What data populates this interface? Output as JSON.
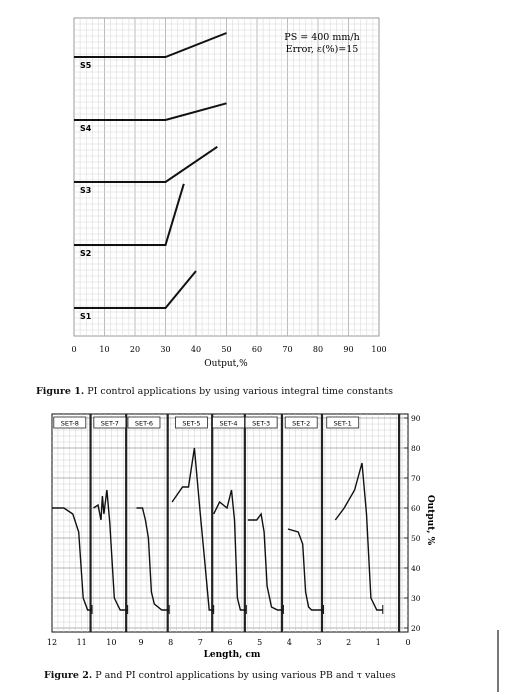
{
  "figure1": {
    "caption_label": "Figure 1.",
    "caption_text": " PI control applications by using various integral time constants",
    "annotation_line1": "PS = 400 mm/h",
    "annotation_line2": "Error, ε(%)=15",
    "xlabel": "Output,%",
    "xticks": [
      "0",
      "10",
      "20",
      "30",
      "40",
      "50",
      "60",
      "70",
      "80",
      "90",
      "100"
    ],
    "panels": [
      {
        "label": "S5",
        "break_x": 30,
        "end_x": 50,
        "rise": 0.65
      },
      {
        "label": "S4",
        "break_x": 30,
        "end_x": 50,
        "rise": 0.45
      },
      {
        "label": "S3",
        "break_x": 30,
        "end_x": 47,
        "rise": 0.95
      },
      {
        "label": "S2",
        "break_x": 30,
        "end_x": 36,
        "rise": 1.65
      },
      {
        "label": "S1",
        "break_x": 30,
        "end_x": 40,
        "rise": 1.0
      }
    ]
  },
  "figure2": {
    "caption_label": "Figure 2.",
    "caption_text": " P and PI control applications by using various PB and τ values",
    "xlabel": "Length, cm",
    "ylabel": "Output, %",
    "xticks": [
      "12",
      "11",
      "10",
      "9",
      "8",
      "7",
      "6",
      "5",
      "4",
      "3",
      "2",
      "1",
      "0"
    ],
    "yticks": [
      "90",
      "80",
      "70",
      "60",
      "50",
      "40",
      "30",
      "20"
    ],
    "sets": [
      "SET-8",
      "SET-7",
      "SET-6",
      "SET-5",
      "SET-4",
      "SET-3",
      "SET-2",
      "SET-1"
    ]
  },
  "chart_data": [
    {
      "type": "line",
      "title": "",
      "xlabel": "Output,%",
      "xlim": [
        0,
        100
      ],
      "series": [
        {
          "name": "S5",
          "x": [
            0,
            30,
            50
          ],
          "y": [
            0,
            0,
            0.65
          ]
        },
        {
          "name": "S4",
          "x": [
            0,
            30,
            50
          ],
          "y": [
            0,
            0,
            0.45
          ]
        },
        {
          "name": "S3",
          "x": [
            0,
            30,
            47
          ],
          "y": [
            0,
            0,
            0.95
          ]
        },
        {
          "name": "S2",
          "x": [
            0,
            30,
            36
          ],
          "y": [
            0,
            0,
            1.65
          ]
        },
        {
          "name": "S1",
          "x": [
            0,
            30,
            40
          ],
          "y": [
            0,
            0,
            1.0
          ]
        }
      ]
    },
    {
      "type": "line",
      "title": "",
      "xlabel": "Length, cm",
      "ylabel": "Output, %",
      "xlim": [
        12,
        0
      ],
      "ylim": [
        20,
        90
      ],
      "series": [
        {
          "name": "SET-8",
          "x": [
            12.0,
            11.6,
            11.3,
            11.1,
            10.95,
            10.8,
            10.65
          ],
          "y": [
            60,
            60,
            58,
            52,
            30,
            26,
            26
          ]
        },
        {
          "name": "SET-7",
          "x": [
            10.6,
            10.45,
            10.35,
            10.3,
            10.25,
            10.15,
            10.05,
            9.9,
            9.7,
            9.45
          ],
          "y": [
            60,
            61,
            56,
            64,
            58,
            66,
            55,
            30,
            26,
            26
          ]
        },
        {
          "name": "SET-6",
          "x": [
            9.15,
            8.95,
            8.85,
            8.75,
            8.65,
            8.55,
            8.3,
            8.05
          ],
          "y": [
            60,
            60,
            56,
            50,
            32,
            28,
            26,
            26
          ]
        },
        {
          "name": "SET-5",
          "x": [
            7.95,
            7.6,
            7.4,
            7.2,
            7.0,
            6.85,
            6.7,
            6.55
          ],
          "y": [
            62,
            67,
            67,
            80,
            58,
            42,
            26,
            26
          ]
        },
        {
          "name": "SET-4",
          "x": [
            6.55,
            6.35,
            6.1,
            5.95,
            5.85,
            5.75,
            5.65,
            5.45
          ],
          "y": [
            58,
            62,
            60,
            66,
            56,
            30,
            26,
            26
          ]
        },
        {
          "name": "SET-3",
          "x": [
            5.4,
            5.1,
            4.95,
            4.85,
            4.75,
            4.6,
            4.4,
            4.2
          ],
          "y": [
            56,
            56,
            58,
            52,
            34,
            27,
            26,
            26
          ]
        },
        {
          "name": "SET-2",
          "x": [
            4.05,
            3.7,
            3.55,
            3.45,
            3.35,
            3.25,
            3.05,
            2.85
          ],
          "y": [
            53,
            52,
            48,
            32,
            27,
            26,
            26,
            26
          ]
        },
        {
          "name": "SET-1",
          "x": [
            2.45,
            2.15,
            1.8,
            1.55,
            1.4,
            1.25,
            1.05,
            0.9,
            0.85
          ],
          "y": [
            56,
            60,
            66,
            75,
            58,
            30,
            26,
            26,
            26
          ]
        }
      ]
    }
  ]
}
